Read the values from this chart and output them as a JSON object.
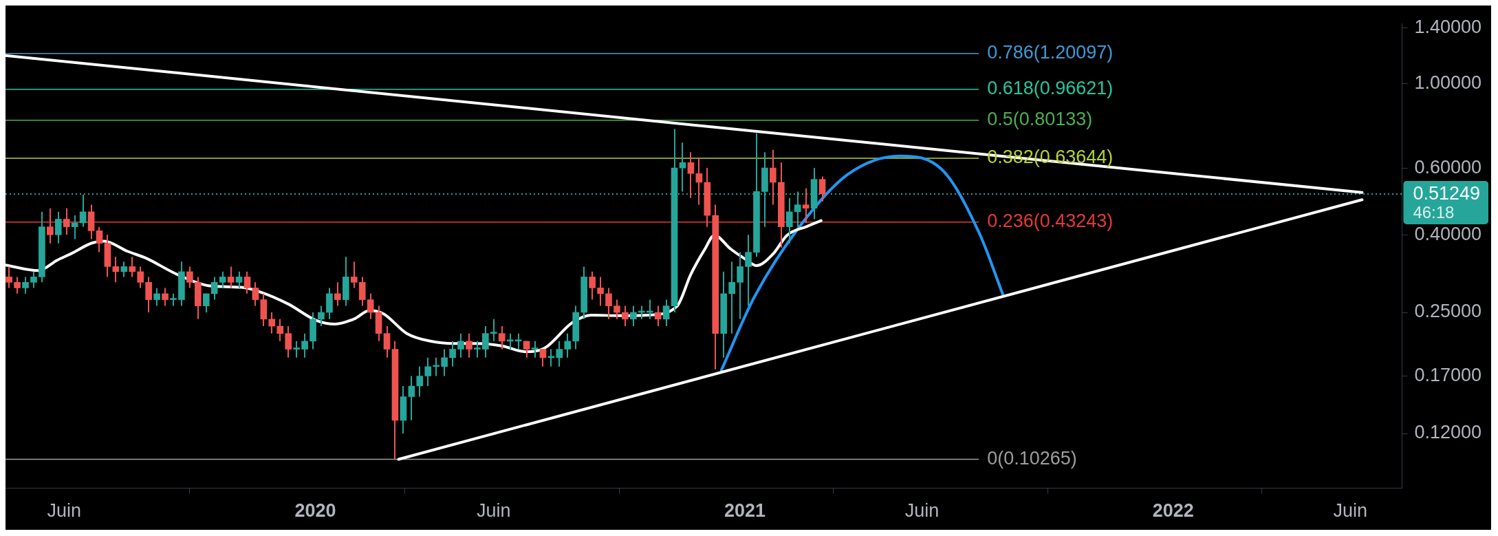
{
  "chart_data": {
    "type": "candlestick",
    "x": [
      "2019-04-15",
      "2019-04-22",
      "2019-04-29",
      "2019-05-06",
      "2019-05-13",
      "2019-05-20",
      "2019-05-27",
      "2019-06-03",
      "2019-06-10",
      "2019-06-17",
      "2019-06-24",
      "2019-07-01",
      "2019-07-08",
      "2019-07-15",
      "2019-07-22",
      "2019-07-29",
      "2019-08-05",
      "2019-08-12",
      "2019-08-19",
      "2019-08-26",
      "2019-09-02",
      "2019-09-09",
      "2019-09-16",
      "2019-09-23",
      "2019-09-30",
      "2019-10-07",
      "2019-10-14",
      "2019-10-21",
      "2019-10-28",
      "2019-11-04",
      "2019-11-11",
      "2019-11-18",
      "2019-11-25",
      "2019-12-02",
      "2019-12-09",
      "2019-12-16",
      "2019-12-23",
      "2019-12-30",
      "2020-01-06",
      "2020-01-13",
      "2020-01-20",
      "2020-01-27",
      "2020-02-03",
      "2020-02-10",
      "2020-02-17",
      "2020-02-24",
      "2020-03-02",
      "2020-03-09",
      "2020-03-16",
      "2020-03-23",
      "2020-03-30",
      "2020-04-06",
      "2020-04-13",
      "2020-04-20",
      "2020-04-27",
      "2020-05-04",
      "2020-05-11",
      "2020-05-18",
      "2020-05-25",
      "2020-06-01",
      "2020-06-08",
      "2020-06-15",
      "2020-06-22",
      "2020-06-29",
      "2020-07-06",
      "2020-07-13",
      "2020-07-20",
      "2020-07-27",
      "2020-08-03",
      "2020-08-10",
      "2020-08-17",
      "2020-08-24",
      "2020-08-31",
      "2020-09-07",
      "2020-09-14",
      "2020-09-21",
      "2020-09-28",
      "2020-10-05",
      "2020-10-12",
      "2020-10-19",
      "2020-10-26",
      "2020-11-02",
      "2020-11-09",
      "2020-11-16",
      "2020-11-23",
      "2020-11-30",
      "2020-12-07",
      "2020-12-14",
      "2020-12-21",
      "2020-12-28",
      "2021-01-04",
      "2021-01-11",
      "2021-01-18",
      "2021-01-25",
      "2021-02-01",
      "2021-02-08",
      "2021-02-15",
      "2021-02-22",
      "2021-03-01",
      "2021-03-08"
    ],
    "ohlc": [
      [
        0.31,
        0.33,
        0.29,
        0.3
      ],
      [
        0.3,
        0.31,
        0.28,
        0.29
      ],
      [
        0.29,
        0.31,
        0.28,
        0.3
      ],
      [
        0.3,
        0.32,
        0.29,
        0.31
      ],
      [
        0.31,
        0.46,
        0.3,
        0.42
      ],
      [
        0.42,
        0.47,
        0.38,
        0.4
      ],
      [
        0.4,
        0.46,
        0.38,
        0.44
      ],
      [
        0.44,
        0.47,
        0.4,
        0.42
      ],
      [
        0.42,
        0.45,
        0.39,
        0.43
      ],
      [
        0.43,
        0.51,
        0.42,
        0.46
      ],
      [
        0.46,
        0.48,
        0.39,
        0.41
      ],
      [
        0.41,
        0.42,
        0.36,
        0.38
      ],
      [
        0.38,
        0.4,
        0.31,
        0.33
      ],
      [
        0.33,
        0.35,
        0.3,
        0.32
      ],
      [
        0.32,
        0.34,
        0.31,
        0.33
      ],
      [
        0.33,
        0.35,
        0.31,
        0.32
      ],
      [
        0.32,
        0.33,
        0.29,
        0.3
      ],
      [
        0.3,
        0.31,
        0.25,
        0.27
      ],
      [
        0.27,
        0.29,
        0.26,
        0.28
      ],
      [
        0.28,
        0.29,
        0.26,
        0.27
      ],
      [
        0.27,
        0.28,
        0.26,
        0.27
      ],
      [
        0.27,
        0.34,
        0.26,
        0.32
      ],
      [
        0.32,
        0.33,
        0.29,
        0.3
      ],
      [
        0.3,
        0.31,
        0.24,
        0.26
      ],
      [
        0.26,
        0.28,
        0.25,
        0.28
      ],
      [
        0.28,
        0.31,
        0.27,
        0.3
      ],
      [
        0.3,
        0.32,
        0.29,
        0.31
      ],
      [
        0.31,
        0.33,
        0.29,
        0.3
      ],
      [
        0.3,
        0.32,
        0.29,
        0.31
      ],
      [
        0.31,
        0.32,
        0.28,
        0.29
      ],
      [
        0.29,
        0.3,
        0.26,
        0.27
      ],
      [
        0.27,
        0.28,
        0.23,
        0.24
      ],
      [
        0.24,
        0.25,
        0.22,
        0.23
      ],
      [
        0.23,
        0.24,
        0.21,
        0.22
      ],
      [
        0.22,
        0.23,
        0.19,
        0.2
      ],
      [
        0.2,
        0.21,
        0.19,
        0.2
      ],
      [
        0.2,
        0.22,
        0.19,
        0.21
      ],
      [
        0.21,
        0.25,
        0.2,
        0.24
      ],
      [
        0.24,
        0.26,
        0.23,
        0.25
      ],
      [
        0.25,
        0.29,
        0.24,
        0.28
      ],
      [
        0.28,
        0.3,
        0.26,
        0.27
      ],
      [
        0.27,
        0.35,
        0.26,
        0.31
      ],
      [
        0.31,
        0.34,
        0.29,
        0.3
      ],
      [
        0.3,
        0.31,
        0.26,
        0.27
      ],
      [
        0.27,
        0.28,
        0.24,
        0.25
      ],
      [
        0.25,
        0.26,
        0.21,
        0.22
      ],
      [
        0.22,
        0.23,
        0.19,
        0.2
      ],
      [
        0.2,
        0.21,
        0.10265,
        0.13
      ],
      [
        0.13,
        0.16,
        0.12,
        0.15
      ],
      [
        0.15,
        0.17,
        0.13,
        0.16
      ],
      [
        0.16,
        0.18,
        0.15,
        0.17
      ],
      [
        0.17,
        0.19,
        0.16,
        0.18
      ],
      [
        0.18,
        0.19,
        0.17,
        0.18
      ],
      [
        0.18,
        0.2,
        0.17,
        0.19
      ],
      [
        0.19,
        0.21,
        0.18,
        0.2
      ],
      [
        0.2,
        0.22,
        0.19,
        0.21
      ],
      [
        0.21,
        0.22,
        0.19,
        0.2
      ],
      [
        0.2,
        0.21,
        0.19,
        0.2
      ],
      [
        0.2,
        0.23,
        0.19,
        0.22
      ],
      [
        0.22,
        0.24,
        0.21,
        0.22
      ],
      [
        0.22,
        0.23,
        0.2,
        0.21
      ],
      [
        0.21,
        0.22,
        0.2,
        0.21
      ],
      [
        0.21,
        0.22,
        0.2,
        0.21
      ],
      [
        0.21,
        0.21,
        0.19,
        0.2
      ],
      [
        0.2,
        0.21,
        0.19,
        0.2
      ],
      [
        0.2,
        0.2,
        0.18,
        0.19
      ],
      [
        0.19,
        0.2,
        0.18,
        0.19
      ],
      [
        0.19,
        0.21,
        0.18,
        0.2
      ],
      [
        0.2,
        0.22,
        0.19,
        0.21
      ],
      [
        0.21,
        0.26,
        0.2,
        0.25
      ],
      [
        0.25,
        0.33,
        0.24,
        0.31
      ],
      [
        0.31,
        0.32,
        0.27,
        0.29
      ],
      [
        0.29,
        0.31,
        0.26,
        0.28
      ],
      [
        0.28,
        0.29,
        0.24,
        0.26
      ],
      [
        0.26,
        0.27,
        0.24,
        0.25
      ],
      [
        0.25,
        0.26,
        0.23,
        0.24
      ],
      [
        0.24,
        0.26,
        0.23,
        0.25
      ],
      [
        0.25,
        0.26,
        0.24,
        0.25
      ],
      [
        0.25,
        0.27,
        0.24,
        0.25
      ],
      [
        0.25,
        0.26,
        0.23,
        0.24
      ],
      [
        0.24,
        0.27,
        0.23,
        0.26
      ],
      [
        0.26,
        0.76,
        0.25,
        0.6
      ],
      [
        0.6,
        0.7,
        0.52,
        0.62
      ],
      [
        0.62,
        0.66,
        0.5,
        0.58
      ],
      [
        0.58,
        0.64,
        0.48,
        0.55
      ],
      [
        0.55,
        0.6,
        0.42,
        0.45
      ],
      [
        0.45,
        0.48,
        0.177,
        0.22
      ],
      [
        0.22,
        0.32,
        0.19,
        0.28
      ],
      [
        0.28,
        0.34,
        0.22,
        0.3
      ],
      [
        0.3,
        0.36,
        0.24,
        0.33
      ],
      [
        0.33,
        0.4,
        0.26,
        0.36
      ],
      [
        0.36,
        0.74,
        0.35,
        0.52
      ],
      [
        0.52,
        0.66,
        0.42,
        0.6
      ],
      [
        0.6,
        0.67,
        0.48,
        0.55
      ],
      [
        0.55,
        0.62,
        0.37,
        0.42
      ],
      [
        0.42,
        0.5,
        0.38,
        0.46
      ],
      [
        0.46,
        0.52,
        0.42,
        0.48
      ],
      [
        0.48,
        0.53,
        0.43,
        0.47
      ],
      [
        0.47,
        0.6,
        0.44,
        0.56
      ],
      [
        0.56,
        0.57,
        0.49,
        0.51249
      ]
    ],
    "colors": [
      "#ef5350",
      "#ef5350",
      "#26a69a",
      "#26a69a",
      "#26a69a",
      "#ef5350",
      "#26a69a",
      "#ef5350",
      "#26a69a",
      "#26a69a",
      "#ef5350",
      "#ef5350",
      "#ef5350",
      "#ef5350",
      "#26a69a",
      "#ef5350",
      "#ef5350",
      "#ef5350",
      "#26a69a",
      "#ef5350",
      "#26a69a",
      "#26a69a",
      "#ef5350",
      "#ef5350",
      "#26a69a",
      "#26a69a",
      "#26a69a",
      "#ef5350",
      "#26a69a",
      "#ef5350",
      "#ef5350",
      "#ef5350",
      "#ef5350",
      "#ef5350",
      "#ef5350",
      "#26a69a",
      "#26a69a",
      "#26a69a",
      "#26a69a",
      "#26a69a",
      "#ef5350",
      "#26a69a",
      "#ef5350",
      "#ef5350",
      "#ef5350",
      "#ef5350",
      "#ef5350",
      "#ef5350",
      "#26a69a",
      "#26a69a",
      "#26a69a",
      "#26a69a",
      "#26a69a",
      "#26a69a",
      "#26a69a",
      "#26a69a",
      "#ef5350",
      "#26a69a",
      "#26a69a",
      "#26a69a",
      "#ef5350",
      "#26a69a",
      "#26a69a",
      "#ef5350",
      "#26a69a",
      "#ef5350",
      "#26a69a",
      "#26a69a",
      "#26a69a",
      "#26a69a",
      "#26a69a",
      "#ef5350",
      "#ef5350",
      "#ef5350",
      "#ef5350",
      "#ef5350",
      "#26a69a",
      "#26a69a",
      "#26a69a",
      "#ef5350",
      "#26a69a",
      "#26a69a",
      "#26a69a",
      "#ef5350",
      "#ef5350",
      "#ef5350",
      "#ef5350",
      "#26a69a",
      "#26a69a",
      "#26a69a",
      "#26a69a",
      "#26a69a",
      "#26a69a",
      "#ef5350",
      "#ef5350",
      "#26a69a",
      "#26a69a",
      "#ef5350",
      "#26a69a",
      "#ef5350"
    ],
    "series": [
      {
        "type": "line",
        "color": "#ffffff",
        "x": [
          "2019-04-12",
          "2019-05-10",
          "2019-05-26",
          "2019-06-07",
          "2019-06-25",
          "2019-07-05",
          "2019-07-25",
          "2019-08-10",
          "2019-09-05",
          "2019-10-02",
          "2019-10-30",
          "2019-11-15",
          "2019-12-09",
          "2020-01-02",
          "2020-01-18",
          "2020-02-04",
          "2020-02-16",
          "2020-02-28",
          "2020-03-19",
          "2020-04-08",
          "2020-04-28",
          "2020-05-18",
          "2020-06-08",
          "2020-06-28",
          "2020-07-14",
          "2020-08-07",
          "2020-08-23",
          "2020-09-17",
          "2020-10-11",
          "2020-11-04",
          "2020-11-16",
          "2020-11-28",
          "2020-12-06",
          "2020-12-20",
          "2021-01-01",
          "2021-01-11",
          "2021-01-25",
          "2021-02-06",
          "2021-02-23",
          "2021-03-07"
        ],
        "values": [
          0.333,
          0.322,
          0.343,
          0.357,
          0.381,
          0.385,
          0.362,
          0.347,
          0.315,
          0.294,
          0.291,
          0.283,
          0.263,
          0.238,
          0.233,
          0.241,
          0.253,
          0.248,
          0.22,
          0.21,
          0.207,
          0.207,
          0.204,
          0.197,
          0.201,
          0.235,
          0.246,
          0.245,
          0.246,
          0.259,
          0.315,
          0.367,
          0.399,
          0.367,
          0.346,
          0.332,
          0.356,
          0.399,
          0.421,
          0.436
        ]
      },
      {
        "type": "line",
        "color": "#ffffff",
        "x": [
          "2019-04-12",
          "2022-06-11"
        ],
        "values": [
          1.186,
          0.517
        ]
      },
      {
        "type": "line",
        "color": "#ffffff",
        "x": [
          "2020-03-12",
          "2022-06-11"
        ],
        "values": [
          0.10265,
          0.495
        ]
      },
      {
        "type": "line",
        "color": "#2196f3",
        "x": [
          "2020-12-12",
          "2021-01-09",
          "2021-02-18",
          "2021-03-30",
          "2021-05-13",
          "2021-06-18",
          "2021-07-20",
          "2021-08-09"
        ],
        "values": [
          0.176,
          0.274,
          0.426,
          0.578,
          0.645,
          0.594,
          0.403,
          0.278
        ]
      }
    ],
    "xlim": [
      "2019-04-12",
      "2022-07-15"
    ],
    "xticks": [
      {
        "value": "2019-06-01",
        "label": "Juin"
      },
      "2020",
      {
        "value": "2020-06-01",
        "label": "Juin"
      },
      "2021",
      {
        "value": "2021-06-01",
        "label": "Juin"
      },
      "2022",
      {
        "value": "2022-06-01",
        "label": "Juin"
      }
    ],
    "ylim": [
      0.0861,
      1.44
    ],
    "yticks": [
      {
        "value": 0.12,
        "label": "0.12000"
      },
      {
        "value": 0.17,
        "label": "0.17000"
      },
      {
        "value": 0.25,
        "label": "0.25000"
      },
      {
        "value": 0.4,
        "label": "0.40000"
      },
      {
        "value": 0.6,
        "label": "0.60000"
      },
      {
        "value": 1,
        "label": "1.00000"
      },
      {
        "value": 1.4,
        "label": "1.40000"
      }
    ],
    "log": "y",
    "ref_lines": [
      {
        "axis": "y",
        "value": 1.20097,
        "label": "0.786(1.20097)",
        "color": "#3d9bd6"
      },
      {
        "axis": "y",
        "value": 0.96621,
        "label": "0.618(0.96621)",
        "color": "#26c6a0"
      },
      {
        "axis": "y",
        "value": 0.80133,
        "label": "0.5(0.80133)",
        "color": "#4caf50"
      },
      {
        "axis": "y",
        "value": 0.63644,
        "label": "0.382(0.63644)",
        "color": "#b5d334"
      },
      {
        "axis": "y",
        "value": 0.43243,
        "label": "0.236(0.43243)",
        "color": "#e53935"
      },
      {
        "axis": "y",
        "value": 0.10265,
        "label": "0(0.10265)",
        "color": "#9e9e9e"
      },
      {
        "axis": "y",
        "value": 0.51249,
        "label": "0.51249",
        "color": "#26a69a",
        "line_style": "dotted"
      }
    ],
    "annotations": [
      "46:18"
    ]
  }
}
